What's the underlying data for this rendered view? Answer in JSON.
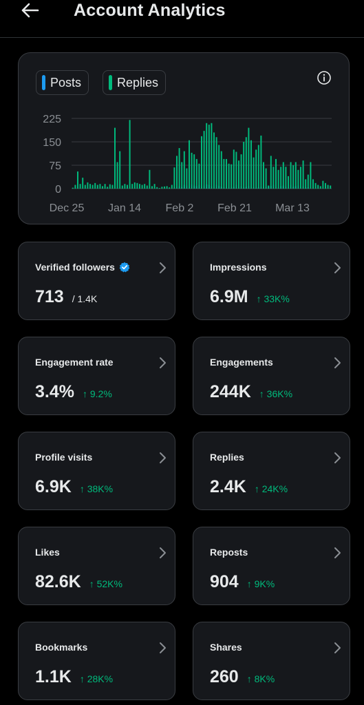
{
  "header": {
    "title": "Account Analytics",
    "back_icon": "arrow-left-icon"
  },
  "colors": {
    "posts": "#1d9bf0",
    "replies": "#00ba7c",
    "delta_up": "#00ba7c",
    "card_bg": "#16181c",
    "border": "#3a3d42"
  },
  "legend": {
    "posts": "Posts",
    "replies": "Replies"
  },
  "chart_data": {
    "type": "bar",
    "title": "",
    "xlabel": "",
    "ylabel": "",
    "ylim": [
      0,
      225
    ],
    "yticks": [
      "0",
      "75",
      "150",
      "225"
    ],
    "xticks": [
      "Dec 25",
      "Jan 14",
      "Feb 2",
      "Feb 21",
      "Mar 13"
    ],
    "grid": true,
    "legend_position": "top-left",
    "series": [
      {
        "name": "Posts",
        "color": "#1d9bf0",
        "values": [
          0,
          0,
          0,
          0,
          0,
          0,
          0,
          0,
          0,
          0,
          0,
          0,
          0,
          0,
          0,
          0,
          0,
          0,
          0,
          0,
          0,
          0,
          0,
          0,
          0,
          0,
          0,
          0,
          0,
          0,
          0,
          0,
          0,
          0,
          0,
          0,
          0,
          0,
          0,
          0,
          0,
          3,
          6,
          8,
          5,
          12,
          10,
          8,
          14,
          10,
          8,
          12,
          6,
          10,
          14,
          12,
          8,
          10,
          12,
          9,
          6,
          4,
          2,
          3,
          2,
          6,
          12,
          5,
          8,
          3,
          6,
          9,
          12,
          5,
          2,
          4,
          6,
          10,
          5,
          7,
          9,
          12,
          6,
          3,
          8,
          10,
          6,
          4,
          12,
          6,
          8,
          10,
          6,
          8,
          3,
          4,
          0,
          0,
          0,
          0,
          0,
          0,
          0,
          0,
          0
        ]
      },
      {
        "name": "Replies",
        "color": "#00ba7c",
        "values": [
          3,
          12,
          55,
          15,
          35,
          12,
          20,
          15,
          12,
          18,
          12,
          15,
          8,
          15,
          6,
          14,
          12,
          195,
          85,
          120,
          10,
          15,
          12,
          220,
          15,
          20,
          18,
          15,
          12,
          15,
          10,
          60,
          8,
          15,
          5,
          2,
          6,
          7,
          8,
          4,
          12,
          68,
          105,
          130,
          85,
          120,
          65,
          155,
          115,
          110,
          95,
          80,
          168,
          185,
          210,
          205,
          210,
          180,
          165,
          140,
          120,
          95,
          95,
          80,
          78,
          125,
          118,
          90,
          110,
          150,
          165,
          195,
          155,
          100,
          125,
          140,
          170,
          85,
          65,
          10,
          105,
          70,
          95,
          60,
          70,
          85,
          70,
          40,
          85,
          75,
          85,
          60,
          70,
          90,
          30,
          45,
          85,
          30,
          18,
          12,
          8,
          25,
          18,
          12,
          10
        ]
      }
    ]
  },
  "stats": [
    {
      "label": "Verified followers",
      "value": "713",
      "sub": "/ 1.4K",
      "delta": "",
      "verified": true
    },
    {
      "label": "Impressions",
      "value": "6.9M",
      "sub": "",
      "delta": "↑ 33K%"
    },
    {
      "label": "Engagement rate",
      "value": "3.4%",
      "sub": "",
      "delta": "↑ 9.2%"
    },
    {
      "label": "Engagements",
      "value": "244K",
      "sub": "",
      "delta": "↑ 36K%"
    },
    {
      "label": "Profile visits",
      "value": "6.9K",
      "sub": "",
      "delta": "↑ 38K%"
    },
    {
      "label": "Replies",
      "value": "2.4K",
      "sub": "",
      "delta": "↑ 24K%"
    },
    {
      "label": "Likes",
      "value": "82.6K",
      "sub": "",
      "delta": "↑ 52K%"
    },
    {
      "label": "Reposts",
      "value": "904",
      "sub": "",
      "delta": "↑ 9K%"
    },
    {
      "label": "Bookmarks",
      "value": "1.1K",
      "sub": "",
      "delta": "↑ 28K%"
    },
    {
      "label": "Shares",
      "value": "260",
      "sub": "",
      "delta": "↑ 8K%"
    }
  ]
}
